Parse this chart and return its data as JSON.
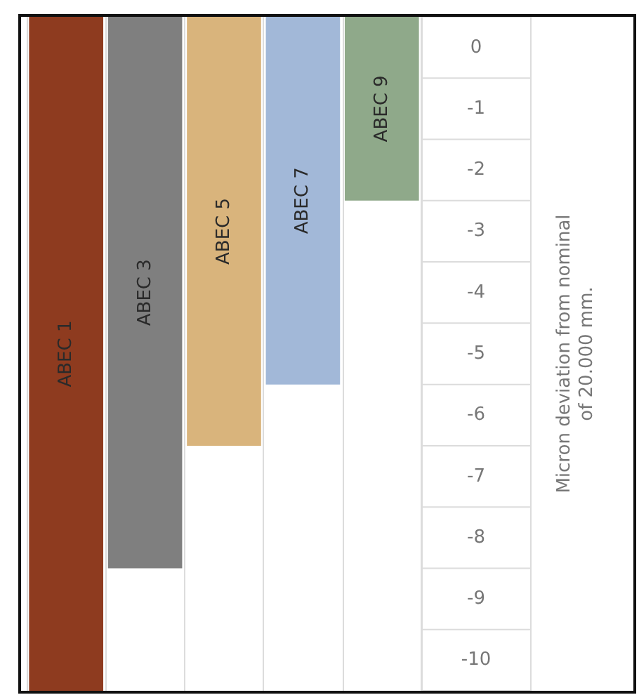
{
  "chart_data": {
    "type": "bar",
    "categories": [
      "ABEC 1",
      "ABEC 3",
      "ABEC 5",
      "ABEC 7",
      "ABEC 9"
    ],
    "base": [
      0.5,
      0.5,
      0.5,
      0.5,
      0.5
    ],
    "values": [
      -11,
      -9,
      -7,
      -6,
      -3
    ],
    "colors": [
      "#8e3b1f",
      "#7f7f7f",
      "#d9b47c",
      "#a2b8d8",
      "#8fa98a"
    ],
    "ylim": [
      -10.5,
      0.5
    ],
    "yticks": [
      0,
      -1,
      -2,
      -3,
      -4,
      -5,
      -6,
      -7,
      -8,
      -9,
      -10
    ],
    "ylabel": "Micron deviation from nominal\nof 20.000 mm.",
    "grid": "x"
  }
}
